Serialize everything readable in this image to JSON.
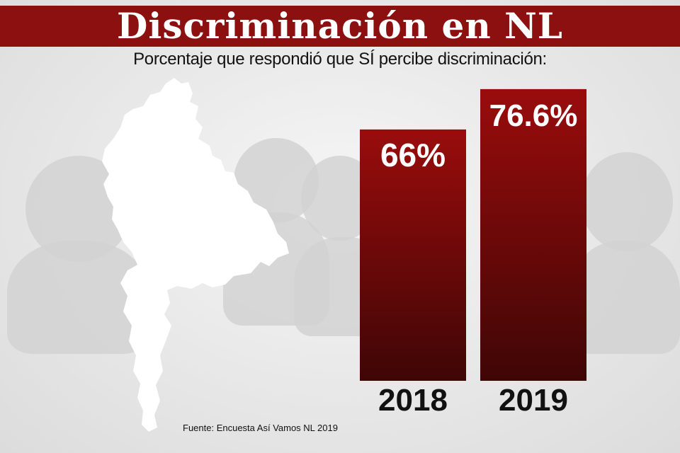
{
  "title": "Discriminación en NL",
  "subtitle": "Porcentaje que respondió que SÍ percibe discriminación:",
  "source": "Fuente: Encuesta Así Vamos NL 2019",
  "colors": {
    "title_bar": "#8c1010",
    "bar_top": "#9a0c0c",
    "bar_bottom": "#3f0606",
    "value_text": "#ffffff",
    "year_text": "#111111"
  },
  "chart_data": {
    "type": "bar",
    "title": "Discriminación en NL",
    "subtitle": "Porcentaje que respondió que SÍ percibe discriminación:",
    "categories": [
      "2018",
      "2019"
    ],
    "values": [
      66,
      76.6
    ],
    "value_labels": [
      "66%",
      "76.6%"
    ],
    "unit": "%",
    "ylim": [
      0,
      100
    ],
    "grid": false,
    "legend": "none"
  }
}
